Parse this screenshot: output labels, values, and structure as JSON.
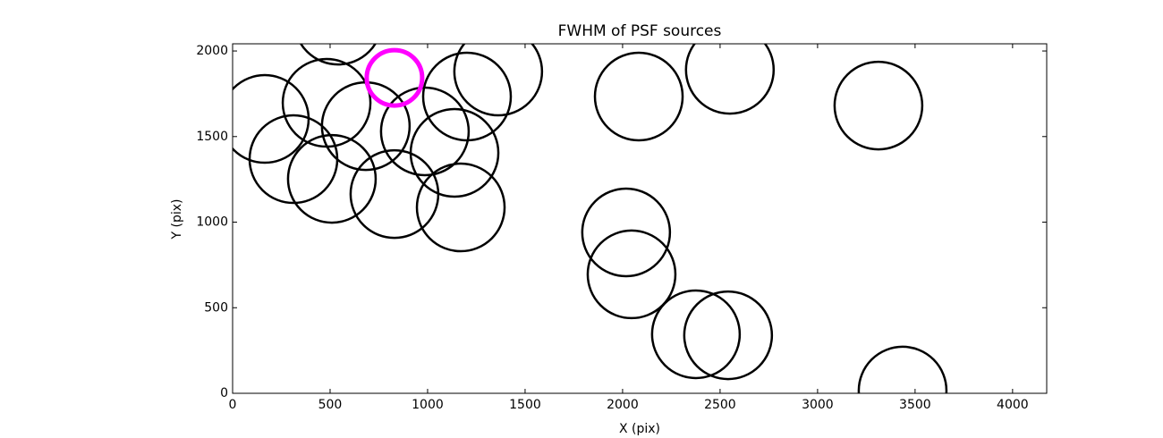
{
  "chart_data": {
    "type": "scatter",
    "title": "FWHM of PSF sources",
    "xlabel": "X (pix)",
    "ylabel": "Y (pix)",
    "xlim": [
      0,
      4175
    ],
    "ylim": [
      0,
      2042
    ],
    "xticks": [
      0,
      500,
      1000,
      1500,
      2000,
      2500,
      3000,
      3500,
      4000
    ],
    "yticks": [
      0,
      500,
      1000,
      1500,
      2000
    ],
    "series": [
      {
        "color": "#000000",
        "x": [
          165,
          312,
          509,
          482,
          541,
          683,
          830,
          986,
          1202,
          1362,
          1138,
          1170,
          2083,
          2550,
          3312,
          2018,
          2046,
          2376,
          2541,
          3436
        ],
        "values": [
          1603,
          1368,
          1253,
          1697,
          2177,
          1561,
          1164,
          1530,
          1734,
          1880,
          1405,
          1086,
          1734,
          1890,
          1681,
          940,
          695,
          345,
          339,
          16
        ]
      },
      {
        "color": "#ff00ff",
        "x": [
          830
        ],
        "values": [
          1843
        ]
      }
    ]
  }
}
